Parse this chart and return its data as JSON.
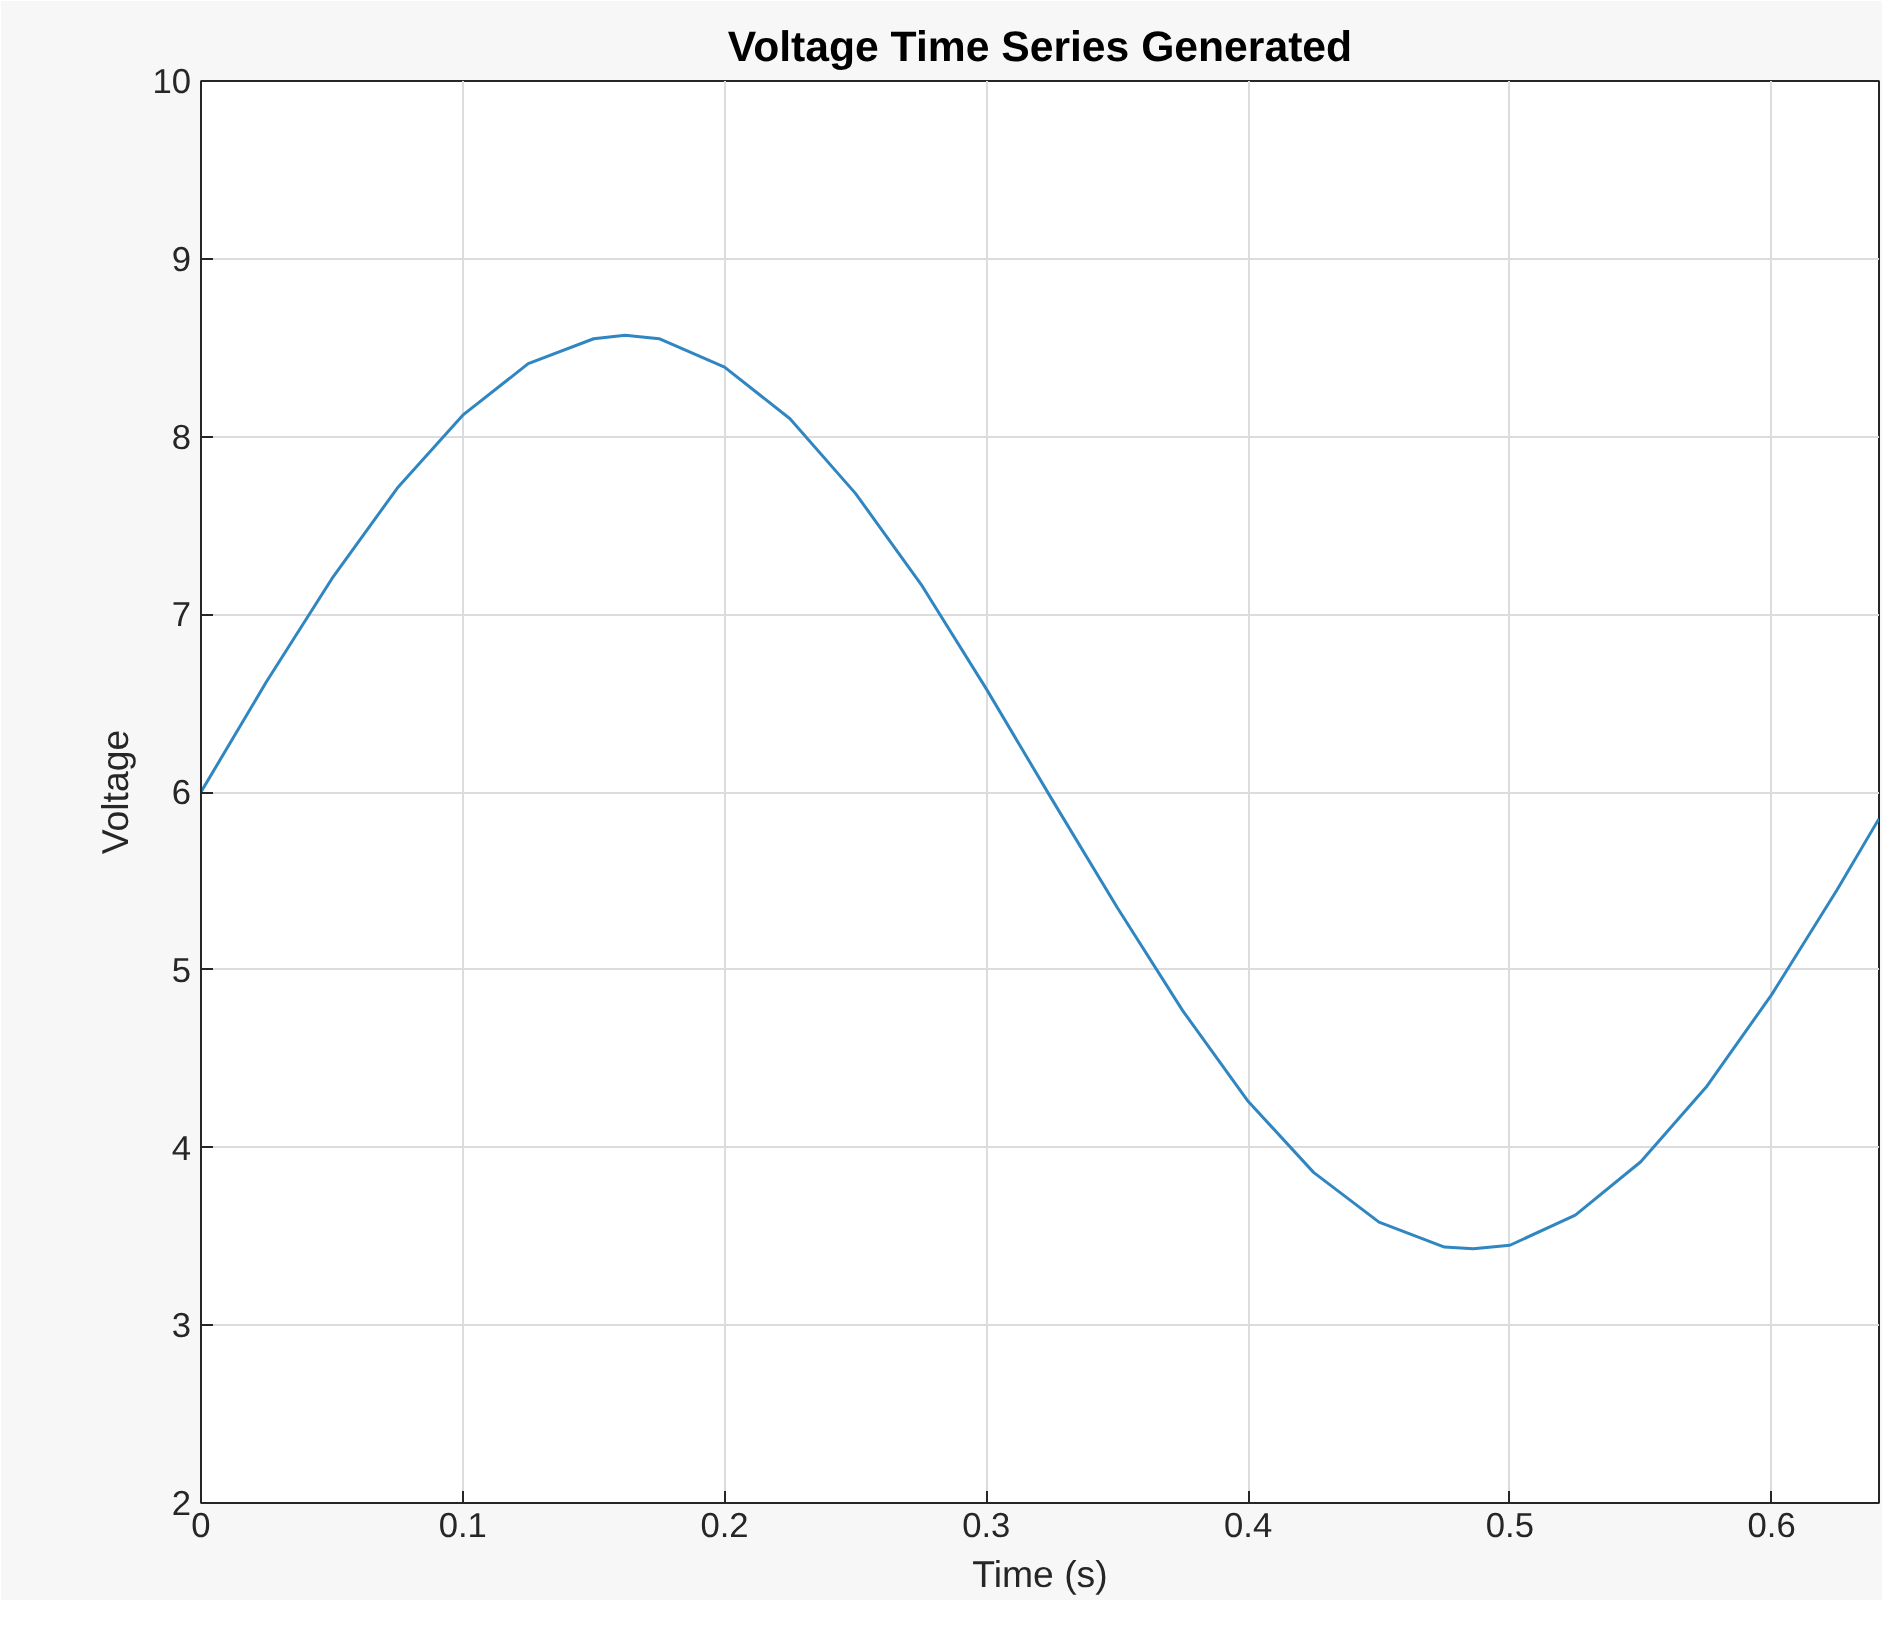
{
  "chart_data": {
    "type": "line",
    "title": "Voltage Time Series Generated",
    "xlabel": "Time (s)",
    "ylabel": "Voltage",
    "x": [
      0,
      0.025,
      0.05,
      0.075,
      0.1,
      0.125,
      0.15,
      0.162,
      0.175,
      0.2,
      0.225,
      0.25,
      0.275,
      0.3,
      0.325,
      0.35,
      0.375,
      0.4,
      0.425,
      0.45,
      0.475,
      0.486,
      0.5,
      0.525,
      0.55,
      0.575,
      0.6,
      0.625,
      0.641
    ],
    "series": [
      {
        "color": "#2f86c0",
        "values": [
          6.0,
          6.62,
          7.2,
          7.71,
          8.12,
          8.41,
          8.55,
          8.57,
          8.55,
          8.39,
          8.1,
          7.68,
          7.17,
          6.58,
          5.96,
          5.35,
          4.77,
          4.26,
          3.86,
          3.58,
          3.44,
          3.43,
          3.45,
          3.62,
          3.92,
          4.34,
          4.86,
          5.45,
          5.85
        ]
      }
    ],
    "xlim": [
      0,
      0.641
    ],
    "ylim": [
      2,
      10
    ],
    "xticks": [
      0,
      0.1,
      0.2,
      0.3,
      0.4,
      0.5,
      0.6
    ],
    "yticks": [
      2,
      3,
      4,
      5,
      6,
      7,
      8,
      9,
      10
    ],
    "grid": true,
    "line_style": "solid"
  }
}
